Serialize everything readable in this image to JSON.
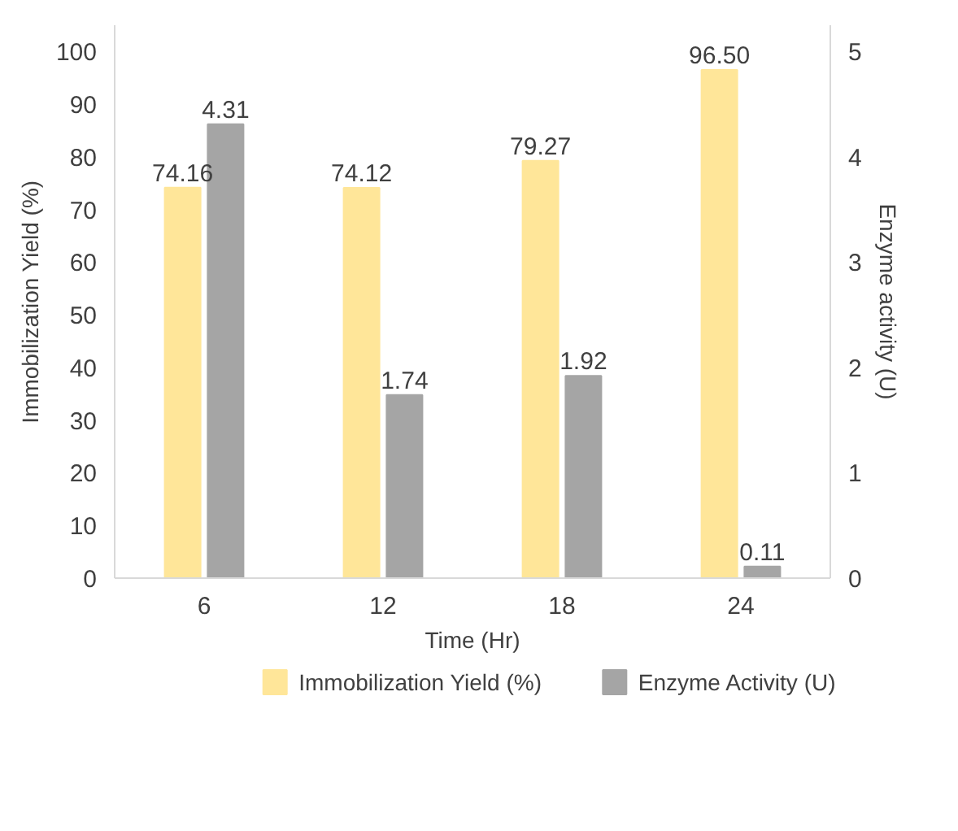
{
  "chart_data": {
    "type": "bar",
    "categories": [
      "6",
      "12",
      "18",
      "24"
    ],
    "xlabel": "Time (Hr)",
    "ylabel": "Immobilization Yield (%)",
    "y2label": "Enzyme activity (U)",
    "series": [
      {
        "name": "Immobilization Yield (%)",
        "color": "#ffe699",
        "values": [
          74.16,
          74.12,
          79.27,
          96.5
        ],
        "value_labels": [
          "74.16",
          "74.12",
          "79.27",
          "96.50"
        ]
      },
      {
        "name": "Enzyme Activity (U)",
        "color": "#a5a5a5",
        "axis": "y2",
        "values": [
          4.31,
          1.74,
          1.92,
          0.11
        ],
        "value_labels": [
          "4.31",
          "1.74",
          "1.92",
          "0.11"
        ]
      }
    ],
    "ylim": [
      0,
      105
    ],
    "yticks": [
      0,
      10,
      20,
      30,
      40,
      50,
      60,
      70,
      80,
      90,
      100
    ],
    "y2lim": [
      0,
      5.25
    ],
    "y2ticks": [
      0,
      1,
      2,
      3,
      4,
      5
    ],
    "grid": false,
    "legend": "bottom"
  }
}
